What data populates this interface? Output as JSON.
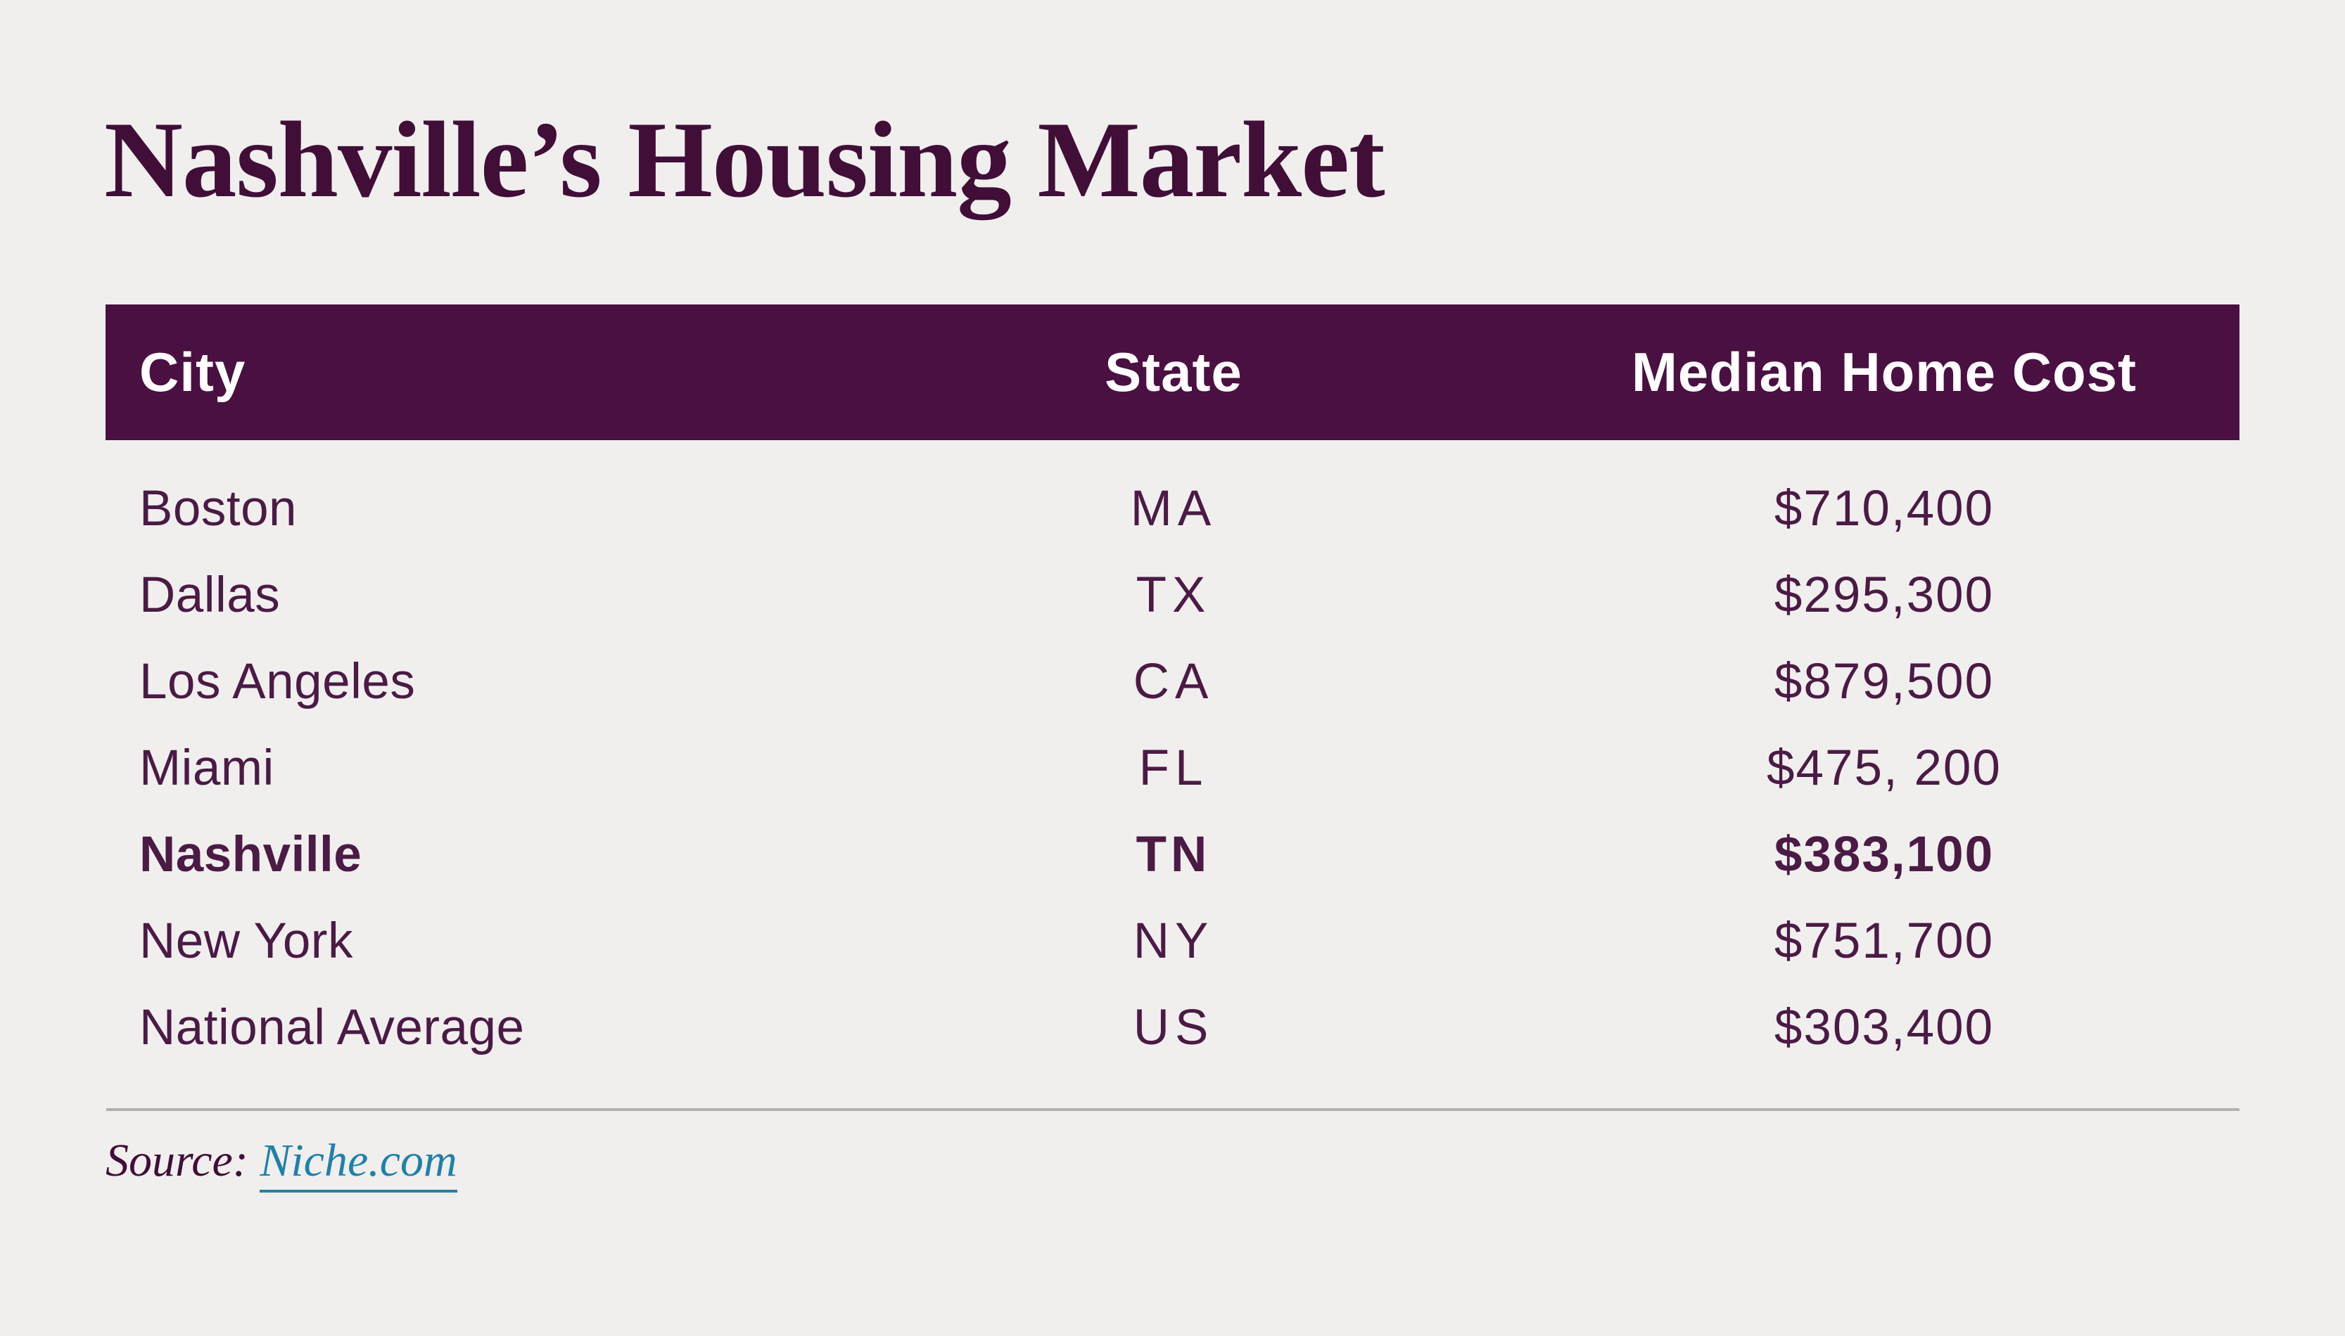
{
  "title": "Nashville’s Housing Market",
  "colors": {
    "background": "#f0efee",
    "header_bg": "#4a1042",
    "header_text": "#ffffff",
    "body_text": "#4b1a45",
    "title_text": "#410e38",
    "link": "#1f81aa",
    "divider": "#b1b0af"
  },
  "table": {
    "headers": {
      "city": "City",
      "state": "State",
      "cost": "Median Home Cost"
    },
    "rows": [
      {
        "city": "Boston",
        "state": "MA",
        "cost": "$710,400"
      },
      {
        "city": "Dallas",
        "state": "TX",
        "cost": "$295,300"
      },
      {
        "city": "Los Angeles",
        "state": "CA",
        "cost": "$879,500"
      },
      {
        "city": "Miami",
        "state": "FL",
        "cost": "$475, 200"
      },
      {
        "city": "Nashville",
        "state": "TN",
        "cost": "$383,100",
        "highlight": true
      },
      {
        "city": "New York",
        "state": "NY",
        "cost": "$751,700"
      },
      {
        "city": "National Average",
        "state": "US",
        "cost": "$303,400"
      }
    ]
  },
  "source": {
    "label": "Source:",
    "link_text": "Niche.com"
  },
  "chart_data": {
    "type": "table",
    "title": "Nashville’s Housing Market",
    "columns": [
      "City",
      "State",
      "Median Home Cost"
    ],
    "categories": [
      "Boston",
      "Dallas",
      "Los Angeles",
      "Miami",
      "Nashville",
      "New York",
      "National Average"
    ],
    "states": [
      "MA",
      "TX",
      "CA",
      "FL",
      "TN",
      "NY",
      "US"
    ],
    "values": [
      710400,
      295300,
      879500,
      475200,
      383100,
      751700,
      303400
    ],
    "highlighted_row": "Nashville",
    "source": "Niche.com"
  }
}
